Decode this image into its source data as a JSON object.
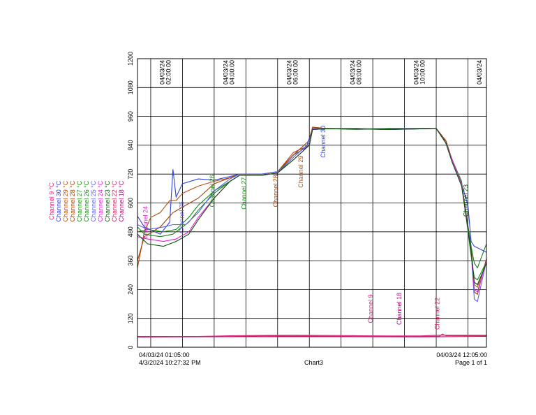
{
  "chart_data": {
    "type": "line",
    "title": "",
    "xlabel": "",
    "ylabel": "",
    "ylim": [
      0,
      1200
    ],
    "yticks": [
      0,
      120,
      240,
      360,
      480,
      600,
      720,
      840,
      960,
      1080,
      1200
    ],
    "x_range_hours": [
      1.083,
      12.083
    ],
    "x_tick_labels": [
      {
        "hour": 2,
        "text": "04/03/24 02:00:00"
      },
      {
        "hour": 4,
        "text": "04/03/24 04:00:00"
      },
      {
        "hour": 6,
        "text": "04/03/24 06:00:00"
      },
      {
        "hour": 8,
        "text": "04/03/24 08:00:00"
      },
      {
        "hour": 10,
        "text": "04/03/24 10:00:00"
      },
      {
        "hour": 12,
        "text": "04/03/24"
      }
    ],
    "grid": true,
    "legend": [
      {
        "name": "Channel 9",
        "unit": "°C",
        "color": "#e8207a"
      },
      {
        "name": "Channel 30",
        "unit": "°C",
        "color": "#3040e0"
      },
      {
        "name": "Channel 29",
        "unit": "°C",
        "color": "#b05010"
      },
      {
        "name": "Channel 28",
        "unit": "°C",
        "color": "#a04000"
      },
      {
        "name": "Channel 27",
        "unit": "°C",
        "color": "#109010"
      },
      {
        "name": "Channel 26",
        "unit": "°C",
        "color": "#208020"
      },
      {
        "name": "Channel 25",
        "unit": "°C",
        "color": "#6060f0"
      },
      {
        "name": "Channel 24",
        "unit": "°C",
        "color": "#e020d0"
      },
      {
        "name": "Channel 23",
        "unit": "°C",
        "color": "#105010"
      },
      {
        "name": "Channel 22",
        "unit": "°C",
        "color": "#d02060"
      },
      {
        "name": "Channel 18",
        "unit": "°C",
        "color": "#a01070"
      }
    ],
    "annotations": [
      {
        "text": "Channel 24",
        "hour": 1.4,
        "value": 520,
        "color": "#e020d0"
      },
      {
        "text": "Channel 25",
        "hour": 2.55,
        "value": 540,
        "color": "#6060f0"
      },
      {
        "text": "Channel 26",
        "hour": 3.5,
        "value": 650,
        "color": "#208020"
      },
      {
        "text": "Channel 27",
        "hour": 4.5,
        "value": 640,
        "color": "#109010"
      },
      {
        "text": "Channel 28",
        "hour": 5.5,
        "value": 650,
        "color": "#a04000"
      },
      {
        "text": "Channel 29",
        "hour": 6.3,
        "value": 730,
        "color": "#b05010"
      },
      {
        "text": "Channel 30",
        "hour": 7.0,
        "value": 855,
        "color": "#3040e0"
      },
      {
        "text": "Channel 9",
        "hour": 8.5,
        "value": 160,
        "color": "#e8207a"
      },
      {
        "text": "Channel 18",
        "hour": 9.4,
        "value": 160,
        "color": "#a01070"
      },
      {
        "text": "Channel 22",
        "hour": 10.6,
        "value": 140,
        "color": "#d02060"
      },
      {
        "text": "Channel 23",
        "hour": 11.5,
        "value": 610,
        "color": "#105010"
      }
    ],
    "series": [
      {
        "color": "#e8207a",
        "points": [
          [
            1.083,
            45
          ],
          [
            3.0,
            45
          ],
          [
            4.0,
            48
          ],
          [
            6.0,
            50
          ],
          [
            8.0,
            48
          ],
          [
            9.0,
            47
          ],
          [
            10.0,
            47
          ],
          [
            10.5,
            50
          ],
          [
            11.0,
            50
          ],
          [
            12.083,
            50
          ]
        ]
      },
      {
        "color": "#a01070",
        "points": [
          [
            1.083,
            42
          ],
          [
            4.0,
            44
          ],
          [
            7.0,
            44
          ],
          [
            10.0,
            43
          ],
          [
            12.083,
            45
          ]
        ]
      },
      {
        "color": "#3040e0",
        "points": [
          [
            1.083,
            545
          ],
          [
            1.3,
            500
          ],
          [
            1.8,
            470
          ],
          [
            2.1,
            520
          ],
          [
            2.2,
            740
          ],
          [
            2.3,
            625
          ],
          [
            2.5,
            680
          ],
          [
            3.0,
            700
          ],
          [
            3.5,
            695
          ],
          [
            4.0,
            710
          ],
          [
            4.3,
            720
          ],
          [
            5.0,
            720
          ],
          [
            5.5,
            730
          ],
          [
            6.0,
            800
          ],
          [
            6.4,
            830
          ],
          [
            6.6,
            910
          ],
          [
            7.0,
            910
          ],
          [
            8.0,
            910
          ],
          [
            9.0,
            905
          ],
          [
            10.0,
            910
          ],
          [
            10.5,
            910
          ],
          [
            10.7,
            870
          ],
          [
            10.8,
            860
          ],
          [
            11.0,
            780
          ],
          [
            11.3,
            680
          ],
          [
            11.5,
            590
          ],
          [
            11.6,
            440
          ],
          [
            11.7,
            420
          ],
          [
            12.083,
            395
          ]
        ]
      },
      {
        "color": "#b05010",
        "points": [
          [
            1.083,
            330
          ],
          [
            1.3,
            480
          ],
          [
            1.5,
            540
          ],
          [
            1.8,
            560
          ],
          [
            2.1,
            610
          ],
          [
            2.3,
            610
          ],
          [
            2.5,
            640
          ],
          [
            3.0,
            670
          ],
          [
            3.5,
            690
          ],
          [
            4.0,
            705
          ],
          [
            4.3,
            720
          ],
          [
            5.0,
            720
          ],
          [
            5.5,
            730
          ],
          [
            6.0,
            810
          ],
          [
            6.5,
            840
          ],
          [
            6.6,
            915
          ],
          [
            7.0,
            910
          ],
          [
            8.0,
            905
          ],
          [
            9.0,
            910
          ],
          [
            10.0,
            910
          ],
          [
            10.5,
            910
          ],
          [
            10.8,
            850
          ],
          [
            11.0,
            780
          ],
          [
            11.3,
            680
          ],
          [
            11.6,
            420
          ],
          [
            11.7,
            260
          ],
          [
            11.8,
            250
          ],
          [
            12.083,
            355
          ]
        ]
      },
      {
        "color": "#a04000",
        "points": [
          [
            1.083,
            360
          ],
          [
            1.3,
            460
          ],
          [
            1.8,
            500
          ],
          [
            2.2,
            560
          ],
          [
            2.6,
            590
          ],
          [
            3.0,
            620
          ],
          [
            3.5,
            680
          ],
          [
            4.0,
            705
          ],
          [
            4.3,
            720
          ],
          [
            5.0,
            720
          ],
          [
            5.5,
            730
          ],
          [
            6.0,
            800
          ],
          [
            6.5,
            860
          ],
          [
            6.6,
            915
          ],
          [
            7.0,
            910
          ],
          [
            8.0,
            908
          ],
          [
            9.0,
            910
          ],
          [
            10.0,
            910
          ],
          [
            10.5,
            910
          ],
          [
            10.8,
            860
          ],
          [
            11.0,
            780
          ],
          [
            11.3,
            680
          ],
          [
            11.6,
            400
          ],
          [
            11.7,
            230
          ],
          [
            11.8,
            220
          ],
          [
            12.083,
            370
          ]
        ]
      },
      {
        "color": "#109010",
        "points": [
          [
            1.083,
            480
          ],
          [
            1.4,
            490
          ],
          [
            1.9,
            480
          ],
          [
            2.3,
            490
          ],
          [
            2.7,
            540
          ],
          [
            3.0,
            590
          ],
          [
            3.5,
            650
          ],
          [
            4.0,
            690
          ],
          [
            4.3,
            715
          ],
          [
            5.0,
            715
          ],
          [
            5.5,
            725
          ],
          [
            6.0,
            790
          ],
          [
            6.5,
            850
          ],
          [
            6.6,
            905
          ],
          [
            7.0,
            910
          ],
          [
            8.0,
            908
          ],
          [
            9.0,
            908
          ],
          [
            10.0,
            910
          ],
          [
            10.5,
            910
          ],
          [
            10.8,
            850
          ],
          [
            11.0,
            780
          ],
          [
            11.3,
            690
          ],
          [
            11.6,
            380
          ],
          [
            11.7,
            290
          ],
          [
            11.8,
            280
          ],
          [
            12.083,
            355
          ]
        ]
      },
      {
        "color": "#208020",
        "points": [
          [
            1.083,
            500
          ],
          [
            1.3,
            470
          ],
          [
            1.8,
            460
          ],
          [
            2.2,
            470
          ],
          [
            2.7,
            520
          ],
          [
            3.0,
            570
          ],
          [
            3.5,
            640
          ],
          [
            4.0,
            690
          ],
          [
            4.3,
            715
          ],
          [
            5.0,
            715
          ],
          [
            5.5,
            725
          ],
          [
            6.0,
            780
          ],
          [
            6.5,
            840
          ],
          [
            6.6,
            905
          ],
          [
            7.0,
            908
          ],
          [
            8.0,
            908
          ],
          [
            9.0,
            905
          ],
          [
            10.0,
            908
          ],
          [
            10.5,
            910
          ],
          [
            10.8,
            850
          ],
          [
            11.0,
            780
          ],
          [
            11.3,
            680
          ],
          [
            11.6,
            420
          ],
          [
            11.7,
            350
          ],
          [
            11.8,
            330
          ],
          [
            12.083,
            430
          ]
        ]
      },
      {
        "color": "#6060f0",
        "points": [
          [
            1.083,
            510
          ],
          [
            1.4,
            490
          ],
          [
            1.9,
            500
          ],
          [
            2.2,
            510
          ],
          [
            2.6,
            510
          ],
          [
            3.0,
            560
          ],
          [
            3.5,
            650
          ],
          [
            4.0,
            700
          ],
          [
            4.3,
            720
          ],
          [
            5.0,
            720
          ],
          [
            5.5,
            730
          ],
          [
            6.0,
            790
          ],
          [
            6.5,
            850
          ],
          [
            6.6,
            905
          ],
          [
            7.0,
            910
          ],
          [
            8.0,
            908
          ],
          [
            9.0,
            905
          ],
          [
            10.0,
            910
          ],
          [
            10.5,
            910
          ],
          [
            10.8,
            850
          ],
          [
            11.0,
            780
          ],
          [
            11.3,
            680
          ],
          [
            11.6,
            400
          ],
          [
            11.7,
            200
          ],
          [
            11.8,
            190
          ],
          [
            12.083,
            360
          ]
        ]
      },
      {
        "color": "#e020d0",
        "points": [
          [
            1.083,
            460
          ],
          [
            1.4,
            450
          ],
          [
            1.9,
            440
          ],
          [
            2.3,
            450
          ],
          [
            2.7,
            480
          ],
          [
            3.0,
            540
          ],
          [
            3.5,
            620
          ],
          [
            4.0,
            690
          ],
          [
            4.3,
            715
          ],
          [
            5.0,
            715
          ],
          [
            5.5,
            725
          ],
          [
            6.0,
            780
          ],
          [
            6.5,
            840
          ],
          [
            6.6,
            905
          ],
          [
            7.0,
            908
          ],
          [
            8.0,
            908
          ],
          [
            9.0,
            905
          ],
          [
            10.0,
            908
          ],
          [
            10.5,
            910
          ],
          [
            10.8,
            850
          ],
          [
            11.0,
            780
          ],
          [
            11.3,
            680
          ],
          [
            11.6,
            400
          ],
          [
            11.7,
            240
          ],
          [
            11.8,
            230
          ],
          [
            12.083,
            360
          ]
        ]
      },
      {
        "color": "#105010",
        "points": [
          [
            1.083,
            470
          ],
          [
            1.4,
            430
          ],
          [
            1.9,
            420
          ],
          [
            2.3,
            440
          ],
          [
            2.7,
            470
          ],
          [
            3.0,
            530
          ],
          [
            3.5,
            620
          ],
          [
            4.0,
            690
          ],
          [
            4.3,
            715
          ],
          [
            5.0,
            715
          ],
          [
            5.5,
            725
          ],
          [
            6.0,
            780
          ],
          [
            6.5,
            840
          ],
          [
            6.6,
            905
          ],
          [
            7.0,
            908
          ],
          [
            8.0,
            908
          ],
          [
            9.0,
            905
          ],
          [
            10.0,
            908
          ],
          [
            10.5,
            910
          ],
          [
            10.8,
            850
          ],
          [
            11.0,
            770
          ],
          [
            11.3,
            670
          ],
          [
            11.6,
            400
          ],
          [
            11.7,
            270
          ],
          [
            11.8,
            260
          ],
          [
            12.083,
            350
          ]
        ]
      },
      {
        "color": "#d02060",
        "points": [
          [
            1.083,
            44
          ],
          [
            3.0,
            44
          ],
          [
            5.0,
            47
          ],
          [
            7.0,
            46
          ],
          [
            9.0,
            45
          ],
          [
            10.6,
            46
          ],
          [
            10.7,
            55
          ],
          [
            10.8,
            48
          ],
          [
            12.083,
            48
          ]
        ]
      }
    ]
  },
  "footer": {
    "start_time": "04/03/24 01:05:00",
    "end_time": "04/03/24 12:05:00",
    "print_time": "4/3/2024  10:27:32 PM",
    "chart_name": "Chart3",
    "page": "Page 1 of 1"
  }
}
